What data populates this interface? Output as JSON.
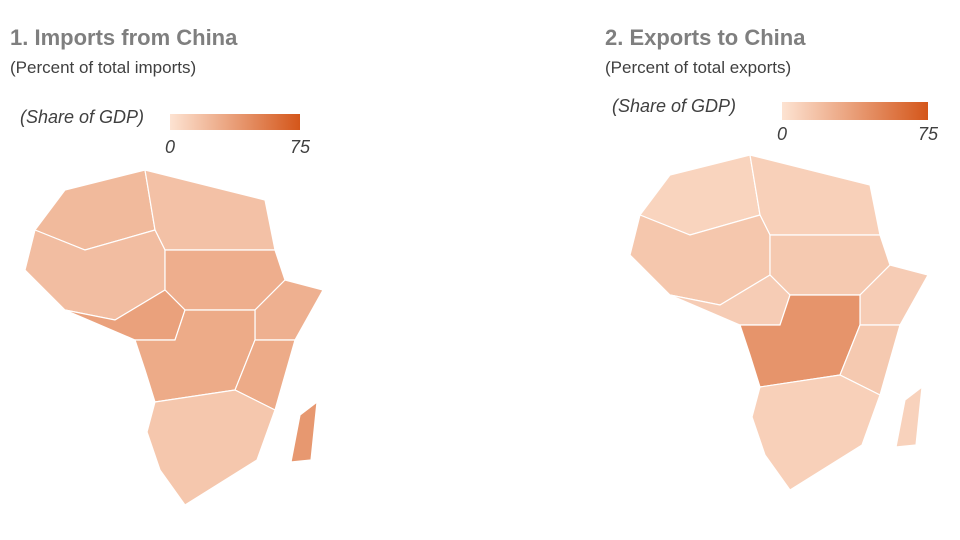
{
  "maps": [
    {
      "title": "1. Imports from China",
      "subtitle": "(Percent of total imports)",
      "legend": {
        "label": "(Share of GDP)",
        "min": 0,
        "max": 75,
        "min_color": "#fde3d2",
        "max_color": "#d4561a"
      },
      "regions": [
        22,
        18,
        20,
        28,
        27,
        35,
        30,
        30,
        15,
        40
      ]
    },
    {
      "title": "2. Exports to China",
      "subtitle": "(Percent of total exports)",
      "legend": {
        "label": "(Share of GDP)",
        "min": 0,
        "max": 75,
        "min_color": "#fde3d2",
        "max_color": "#d4561a"
      },
      "regions": [
        8,
        10,
        15,
        14,
        12,
        12,
        42,
        14,
        10,
        9
      ]
    }
  ]
}
